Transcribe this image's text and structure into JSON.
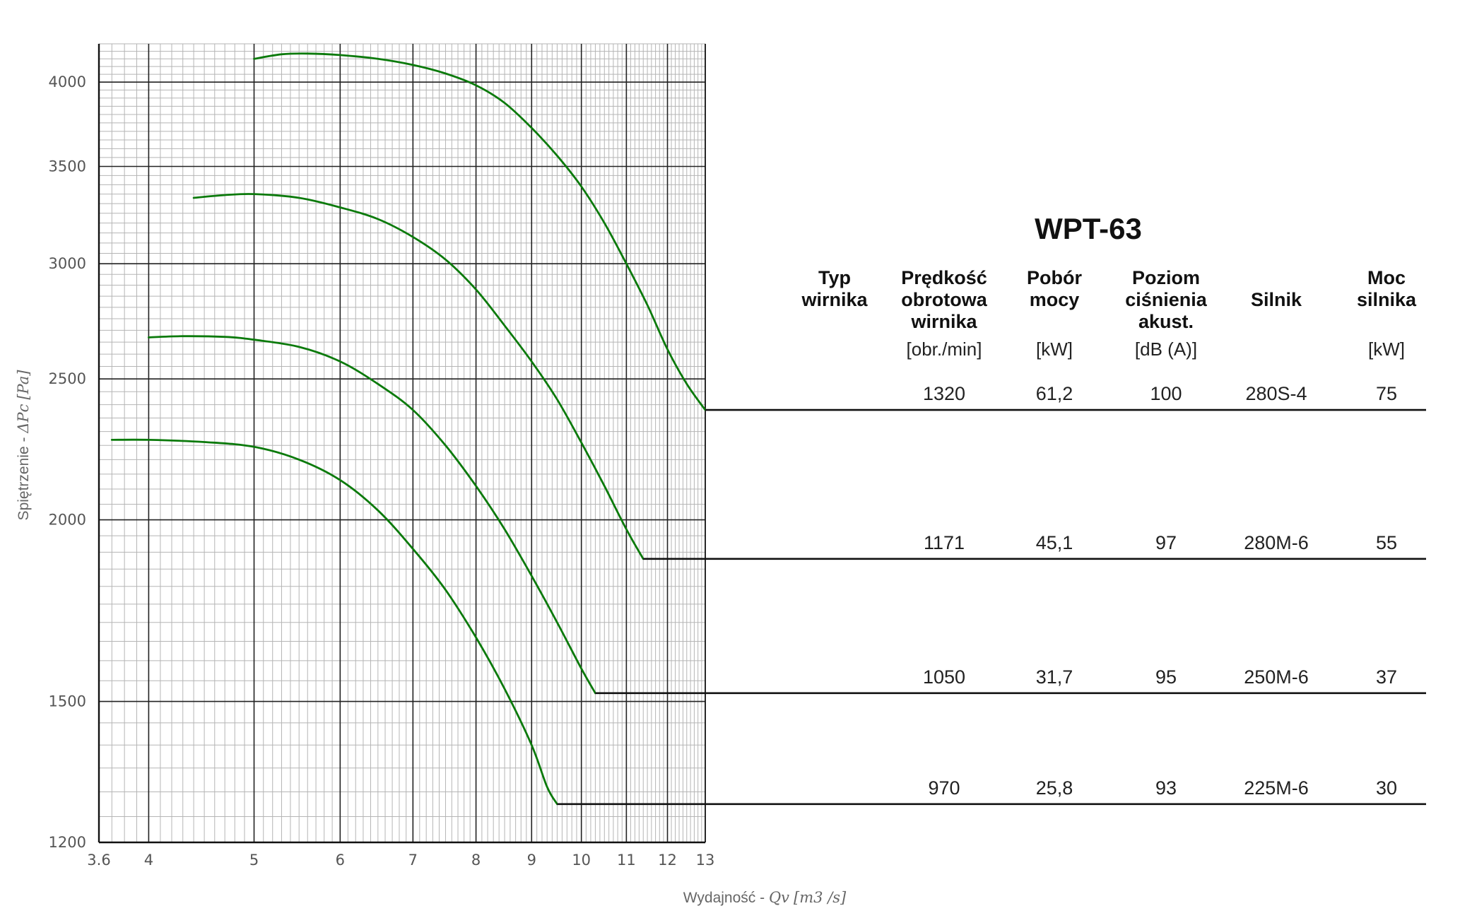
{
  "chart_data": {
    "type": "line",
    "title": "WPT-63",
    "xlabel_text": "Wydajność - ",
    "xlabel_symbol": "Qv",
    "xlabel_unit": "[m3 /s]",
    "ylabel_text": "Spiętrzenie - ",
    "ylabel_symbol": "ΔPc",
    "ylabel_unit": "[Pa]",
    "x_scale": "log",
    "y_scale": "log",
    "xlim": [
      3.6,
      13
    ],
    "ylim": [
      1200,
      4250
    ],
    "x_ticks": [
      3.6,
      4,
      5,
      6,
      7,
      8,
      9,
      10,
      11,
      12,
      13
    ],
    "x_tick_labels": [
      "3.6",
      "4",
      "5",
      "6",
      "7",
      "8",
      "9",
      "10",
      "11",
      "12",
      "13"
    ],
    "y_ticks": [
      1200,
      1500,
      2000,
      2500,
      3000,
      3500,
      4000
    ],
    "y_tick_labels": [
      "1200",
      "1500",
      "2000",
      "2500",
      "3000",
      "3500",
      "4000"
    ],
    "grid": true,
    "line_color": "#0b7a0b",
    "series": [
      {
        "speed": "1320",
        "x": [
          5.0,
          5.3,
          5.6,
          6.0,
          6.5,
          7.0,
          7.5,
          8.0,
          8.5,
          9.0,
          9.5,
          10.0,
          10.5,
          11.0,
          11.5,
          12.0,
          12.5,
          13.0
        ],
        "y": [
          4150,
          4180,
          4185,
          4175,
          4150,
          4110,
          4055,
          3980,
          3870,
          3720,
          3560,
          3390,
          3200,
          3000,
          2810,
          2620,
          2480,
          2380
        ]
      },
      {
        "speed": "1171",
        "x": [
          4.4,
          4.7,
          5.0,
          5.5,
          6.0,
          6.5,
          7.0,
          7.5,
          8.0,
          8.5,
          9.0,
          9.5,
          10.0,
          10.5,
          11.0,
          11.4
        ],
        "y": [
          3330,
          3345,
          3350,
          3330,
          3280,
          3220,
          3130,
          3020,
          2880,
          2720,
          2570,
          2420,
          2260,
          2110,
          1970,
          1880
        ]
      },
      {
        "speed": "1050",
        "x": [
          4.0,
          4.3,
          4.7,
          5.0,
          5.5,
          6.0,
          6.5,
          7.0,
          7.5,
          8.0,
          8.5,
          9.0,
          9.5,
          10.0,
          10.3
        ],
        "y": [
          2670,
          2675,
          2672,
          2660,
          2630,
          2570,
          2480,
          2380,
          2250,
          2110,
          1970,
          1830,
          1700,
          1580,
          1520
        ]
      },
      {
        "speed": "970",
        "x": [
          3.7,
          4.0,
          4.5,
          5.0,
          5.5,
          6.0,
          6.5,
          7.0,
          7.5,
          8.0,
          8.5,
          9.0,
          9.3,
          9.5
        ],
        "y": [
          2270,
          2270,
          2262,
          2245,
          2200,
          2130,
          2030,
          1910,
          1790,
          1660,
          1530,
          1400,
          1310,
          1275
        ]
      }
    ]
  },
  "table": {
    "headers": [
      {
        "lines": [
          "Typ",
          "wirnika"
        ],
        "unit": ""
      },
      {
        "lines": [
          "Prędkość",
          "obrotowa",
          "wirnika"
        ],
        "unit": "[obr./min]"
      },
      {
        "lines": [
          "Pobór",
          "mocy"
        ],
        "unit": "[kW]"
      },
      {
        "lines": [
          "Poziom",
          "ciśnienia",
          "akust."
        ],
        "unit": "[dB (A)]"
      },
      {
        "lines": [
          "Silnik"
        ],
        "unit": ""
      },
      {
        "lines": [
          "Moc",
          "silnika"
        ],
        "unit": "[kW]"
      }
    ],
    "rows": [
      {
        "typ": "",
        "speed": "1320",
        "power": "61,2",
        "noise": "100",
        "motor": "280S-4",
        "motor_power": "75",
        "end_y": 2380
      },
      {
        "typ": "",
        "speed": "1171",
        "power": "45,1",
        "noise": "97",
        "motor": "280M-6",
        "motor_power": "55",
        "end_y": 1880
      },
      {
        "typ": "",
        "speed": "1050",
        "power": "31,7",
        "noise": "95",
        "motor": "250M-6",
        "motor_power": "37",
        "end_y": 1520
      },
      {
        "typ": "",
        "speed": "970",
        "power": "25,8",
        "noise": "93",
        "motor": "225M-6",
        "motor_power": "30",
        "end_y": 1275
      }
    ]
  }
}
